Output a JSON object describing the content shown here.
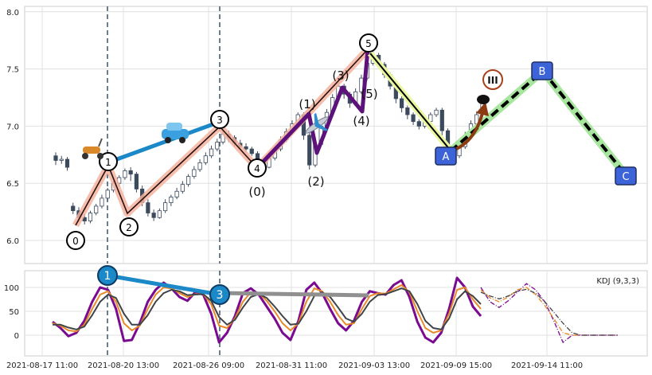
{
  "chart_data": [
    {
      "type": "candlestick",
      "title": "",
      "xlabel": "",
      "ylabel": "",
      "ylim": [
        5.8,
        8.05
      ],
      "yticks": [
        "6.0",
        "6.5",
        "7.0",
        "7.5",
        "8.0"
      ],
      "grid": true,
      "x_tick_labels": [
        "2021-08-17 11:00",
        "2021-08-20 13:00",
        "2021-08-26 09:00",
        "2021-08-31 11:00",
        "2021-09-03 13:00",
        "2021-09-09 15:00",
        "2021-09-14 11:00"
      ],
      "vertical_markers": [
        "2021-08-20 13:00",
        "2021-08-26 09:00"
      ],
      "wave_path": [
        {
          "label": "0",
          "time": "2021-08-17 11:00",
          "price": 6.17
        },
        {
          "label": "1",
          "time": "2021-08-19 13:00",
          "price": 6.63
        },
        {
          "label": "2",
          "time": "2021-08-20 13:00",
          "price": 6.2
        },
        {
          "label": "3",
          "time": "2021-08-26 09:00",
          "price": 6.95
        },
        {
          "label": "4",
          "time": "2021-08-27 09:00",
          "price": 6.64
        },
        {
          "label": "5",
          "time": "2021-09-03 13:00",
          "price": 7.62
        }
      ],
      "wave_labels": [
        {
          "label": "0",
          "style": "circle"
        },
        {
          "label": "1",
          "style": "circle"
        },
        {
          "label": "2",
          "style": "circle"
        },
        {
          "label": "3",
          "style": "circle"
        },
        {
          "label": "4",
          "style": "circle"
        },
        {
          "label": "5",
          "style": "circle"
        },
        {
          "label": "(0)",
          "style": "paren"
        },
        {
          "label": "(1)",
          "style": "paren"
        },
        {
          "label": "(2)",
          "style": "paren"
        },
        {
          "label": "(3)",
          "style": "paren"
        },
        {
          "label": "(4)",
          "style": "paren"
        },
        {
          "label": "(5)",
          "style": "paren"
        },
        {
          "label": "III",
          "style": "roman"
        }
      ],
      "correction": [
        {
          "label": "A",
          "time": "2021-09-09 15:00",
          "price": 6.73
        },
        {
          "label": "B",
          "time": "2021-09-14 11:00",
          "price": 7.48
        },
        {
          "label": "C",
          "time": "2021-09-17 11:00",
          "price": 6.57
        }
      ],
      "candles_approx": [
        [
          6.74,
          6.7,
          6.77,
          6.66
        ],
        [
          6.7,
          6.71,
          6.74,
          6.67
        ],
        [
          6.71,
          6.64,
          6.73,
          6.61
        ],
        [
          6.3,
          6.26,
          6.33,
          6.23
        ],
        [
          6.26,
          6.2,
          6.29,
          6.16
        ],
        [
          6.2,
          6.17,
          6.23,
          6.14
        ],
        [
          6.17,
          6.24,
          6.26,
          6.15
        ],
        [
          6.24,
          6.3,
          6.32,
          6.22
        ],
        [
          6.3,
          6.37,
          6.4,
          6.28
        ],
        [
          6.37,
          6.44,
          6.46,
          6.35
        ],
        [
          6.44,
          6.5,
          6.52,
          6.42
        ],
        [
          6.5,
          6.55,
          6.57,
          6.47
        ],
        [
          6.55,
          6.61,
          6.63,
          6.53
        ],
        [
          6.61,
          6.58,
          6.64,
          6.52
        ],
        [
          6.58,
          6.45,
          6.6,
          6.42
        ],
        [
          6.45,
          6.33,
          6.48,
          6.3
        ],
        [
          6.33,
          6.24,
          6.36,
          6.21
        ],
        [
          6.24,
          6.2,
          6.27,
          6.17
        ],
        [
          6.2,
          6.26,
          6.28,
          6.19
        ],
        [
          6.26,
          6.33,
          6.36,
          6.24
        ],
        [
          6.33,
          6.38,
          6.4,
          6.3
        ],
        [
          6.38,
          6.43,
          6.46,
          6.36
        ],
        [
          6.43,
          6.49,
          6.52,
          6.41
        ],
        [
          6.49,
          6.56,
          6.58,
          6.47
        ],
        [
          6.56,
          6.62,
          6.65,
          6.54
        ],
        [
          6.62,
          6.68,
          6.71,
          6.6
        ],
        [
          6.68,
          6.74,
          6.77,
          6.66
        ],
        [
          6.74,
          6.8,
          6.83,
          6.72
        ],
        [
          6.8,
          6.86,
          6.89,
          6.78
        ],
        [
          6.86,
          6.93,
          6.96,
          6.84
        ],
        [
          6.93,
          6.9,
          6.96,
          6.86
        ],
        [
          6.9,
          6.85,
          6.92,
          6.82
        ],
        [
          6.85,
          6.82,
          6.88,
          6.8
        ],
        [
          6.82,
          6.8,
          6.85,
          6.77
        ],
        [
          6.8,
          6.76,
          6.82,
          6.74
        ],
        [
          6.76,
          6.68,
          6.78,
          6.66
        ],
        [
          6.68,
          6.64,
          6.71,
          6.62
        ],
        [
          6.64,
          6.72,
          6.74,
          6.63
        ],
        [
          6.72,
          6.8,
          6.82,
          6.7
        ],
        [
          6.8,
          6.88,
          6.91,
          6.78
        ],
        [
          6.88,
          6.95,
          6.98,
          6.86
        ],
        [
          6.95,
          7.02,
          7.05,
          6.93
        ],
        [
          7.02,
          7.1,
          7.12,
          7.0
        ],
        [
          7.1,
          6.92,
          7.12,
          6.88
        ],
        [
          6.92,
          6.66,
          6.95,
          6.62
        ],
        [
          6.66,
          6.84,
          6.87,
          6.64
        ],
        [
          6.84,
          7.0,
          7.02,
          6.82
        ],
        [
          7.0,
          7.12,
          7.15,
          6.98
        ],
        [
          7.12,
          7.25,
          7.28,
          7.1
        ],
        [
          7.25,
          7.35,
          7.38,
          7.23
        ],
        [
          7.35,
          7.28,
          7.37,
          7.24
        ],
        [
          7.28,
          7.2,
          7.3,
          7.16
        ],
        [
          7.2,
          7.3,
          7.33,
          7.18
        ],
        [
          7.3,
          7.42,
          7.45,
          7.28
        ],
        [
          7.42,
          7.55,
          7.58,
          7.4
        ],
        [
          7.55,
          7.62,
          7.66,
          7.53
        ],
        [
          7.62,
          7.54,
          7.64,
          7.51
        ],
        [
          7.54,
          7.45,
          7.56,
          7.42
        ],
        [
          7.45,
          7.35,
          7.47,
          7.32
        ],
        [
          7.35,
          7.24,
          7.37,
          7.2
        ],
        [
          7.24,
          7.16,
          7.26,
          7.12
        ],
        [
          7.16,
          7.1,
          7.18,
          7.06
        ],
        [
          7.1,
          7.04,
          7.12,
          7.01
        ],
        [
          7.04,
          7.0,
          7.06,
          6.97
        ],
        [
          7.0,
          7.04,
          7.07,
          6.98
        ],
        [
          7.04,
          7.1,
          7.12,
          7.02
        ],
        [
          7.1,
          7.14,
          7.16,
          7.08
        ],
        [
          7.14,
          6.96,
          7.16,
          6.92
        ],
        [
          6.96,
          6.8,
          6.98,
          6.76
        ],
        [
          6.8,
          6.74,
          6.82,
          6.7
        ],
        [
          6.74,
          6.82,
          6.84,
          6.72
        ],
        [
          6.82,
          6.92,
          6.95,
          6.8
        ],
        [
          6.92,
          7.02,
          7.05,
          6.9
        ],
        [
          7.02,
          7.1,
          7.13,
          7.0
        ],
        [
          7.1,
          7.2,
          7.24,
          7.08
        ]
      ]
    },
    {
      "type": "line",
      "title": "",
      "legend": "KDJ (9,3,3)",
      "legend_position": "top-right",
      "ylim": [
        -30,
        140
      ],
      "yticks": [
        "0",
        "50",
        "100"
      ],
      "grid": true,
      "series": [
        {
          "values": [
            28,
            15,
            -2,
            5,
            30,
            70,
            100,
            95,
            55,
            -12,
            -10,
            25,
            70,
            95,
            110,
            98,
            80,
            72,
            90,
            85,
            45,
            -15,
            5,
            40,
            88,
            98,
            85,
            60,
            35,
            5,
            -10,
            30,
            95,
            110,
            88,
            55,
            25,
            10,
            30,
            70,
            92,
            88,
            85,
            105,
            115,
            80,
            28,
            -5,
            -15,
            5,
            55,
            120,
            100,
            60,
            40
          ]
        },
        {
          "values": [
            25,
            20,
            10,
            8,
            22,
            55,
            85,
            92,
            70,
            25,
            10,
            20,
            55,
            85,
            100,
            98,
            88,
            80,
            86,
            86,
            65,
            20,
            15,
            35,
            70,
            90,
            88,
            72,
            50,
            25,
            10,
            25,
            70,
            98,
            92,
            70,
            42,
            22,
            25,
            55,
            82,
            88,
            87,
            96,
            105,
            90,
            50,
            15,
            5,
            10,
            45,
            95,
            100,
            75,
            55
          ]
        },
        {
          "values": [
            22,
            22,
            16,
            12,
            18,
            42,
            70,
            85,
            78,
            45,
            22,
            22,
            42,
            70,
            88,
            95,
            92,
            84,
            85,
            86,
            72,
            38,
            22,
            32,
            58,
            80,
            86,
            78,
            60,
            40,
            22,
            24,
            50,
            82,
            90,
            80,
            58,
            35,
            28,
            45,
            70,
            84,
            86,
            92,
            98,
            92,
            65,
            30,
            15,
            12,
            35,
            75,
            92,
            82,
            65
          ]
        },
        {
          "values": [
            100,
            70,
            58,
            72,
            90,
            108,
            95,
            70,
            30,
            -15,
            0,
            0,
            0,
            0,
            0,
            0
          ],
          "style": "dash-dot",
          "projection": true
        },
        {
          "values": [
            95,
            78,
            70,
            80,
            95,
            100,
            85,
            62,
            35,
            5,
            0,
            0,
            0,
            0,
            0,
            0
          ],
          "style": "dash-dot",
          "projection": true
        },
        {
          "values": [
            90,
            82,
            76,
            82,
            92,
            96,
            88,
            70,
            48,
            25,
            5,
            0,
            0,
            0,
            0,
            0
          ],
          "style": "dash-dot",
          "projection": true
        }
      ],
      "markers": [
        {
          "label": "1",
          "time": "2021-08-20 13:00",
          "value": 128
        },
        {
          "label": "3",
          "time": "2021-08-26 09:00",
          "value": 88
        }
      ]
    }
  ],
  "colors": {
    "candle_up": "#3c4a5e",
    "wave_fill": "#f4b39e",
    "wave_line": "#2a0f0f",
    "subwave": "#5c127a",
    "blue_line": "#1b88c8",
    "correction_dash": "#000000",
    "correction_glow": "#a8e6a0",
    "k_line": "#7a0a8f",
    "d_line": "#e88a2a",
    "j_line": "#404448",
    "marker_circle": "#1b88c8",
    "label_box": "#3c64d8"
  },
  "icons": [
    "scooter-icon",
    "car-icon",
    "airplane-icon",
    "curved-arrow-icon"
  ]
}
